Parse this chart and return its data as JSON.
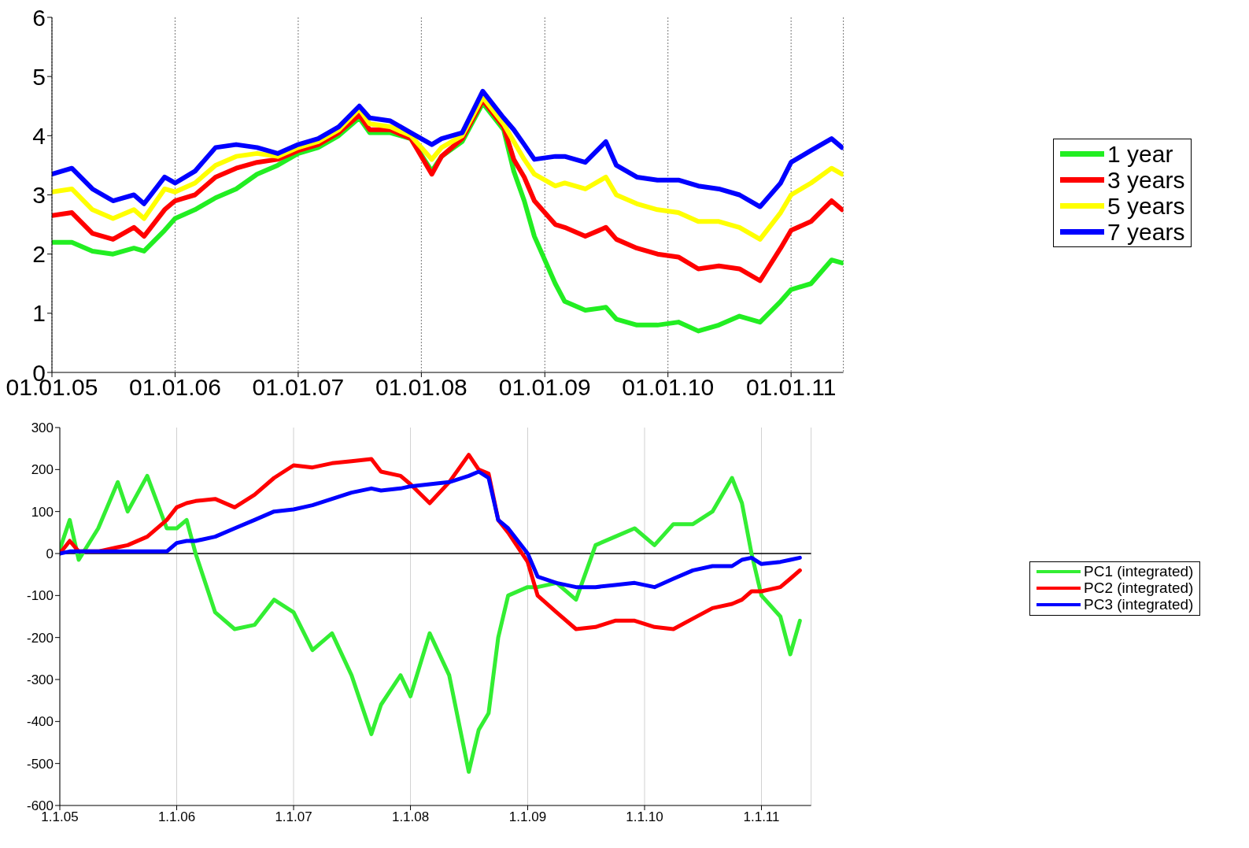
{
  "chart_data": [
    {
      "type": "line",
      "x": [
        "2005-01",
        "2005-03",
        "2005-05",
        "2005-07",
        "2005-09",
        "2005-10",
        "2005-12",
        "2006-01",
        "2006-03",
        "2006-05",
        "2006-07",
        "2006-09",
        "2006-11",
        "2007-01",
        "2007-03",
        "2007-05",
        "2007-07",
        "2007-08",
        "2007-10",
        "2007-12",
        "2008-02",
        "2008-03",
        "2008-05",
        "2008-07",
        "2008-09",
        "2008-10",
        "2008-11",
        "2008-12",
        "2009-02",
        "2009-03",
        "2009-05",
        "2009-07",
        "2009-08",
        "2009-10",
        "2009-12",
        "2010-02",
        "2010-04",
        "2010-06",
        "2010-08",
        "2010-10",
        "2010-12",
        "2011-01",
        "2011-03",
        "2011-05",
        "2011-06"
      ],
      "series": [
        {
          "name": "1 year",
          "color": "#22ee22",
          "values": [
            2.2,
            2.2,
            2.05,
            2.0,
            2.1,
            2.05,
            2.4,
            2.6,
            2.75,
            2.95,
            3.1,
            3.35,
            3.5,
            3.7,
            3.8,
            4.0,
            4.3,
            4.05,
            4.05,
            3.95,
            3.4,
            3.65,
            3.9,
            4.55,
            4.1,
            3.4,
            2.9,
            2.3,
            1.5,
            1.2,
            1.05,
            1.1,
            0.9,
            0.8,
            0.8,
            0.85,
            0.7,
            0.8,
            0.95,
            0.85,
            1.2,
            1.4,
            1.5,
            1.9,
            1.85
          ]
        },
        {
          "name": "3 years",
          "color": "#ff0000",
          "values": [
            2.65,
            2.7,
            2.35,
            2.25,
            2.45,
            2.3,
            2.75,
            2.9,
            3.0,
            3.3,
            3.45,
            3.55,
            3.6,
            3.75,
            3.85,
            4.05,
            4.35,
            4.1,
            4.1,
            3.95,
            3.35,
            3.65,
            3.95,
            4.6,
            4.15,
            3.6,
            3.3,
            2.9,
            2.5,
            2.45,
            2.3,
            2.45,
            2.25,
            2.1,
            2.0,
            1.95,
            1.75,
            1.8,
            1.75,
            1.55,
            2.1,
            2.4,
            2.55,
            2.9,
            2.75
          ]
        },
        {
          "name": "5 years",
          "color": "#ffff00",
          "values": [
            3.05,
            3.1,
            2.75,
            2.6,
            2.75,
            2.6,
            3.1,
            3.05,
            3.2,
            3.5,
            3.65,
            3.7,
            3.65,
            3.8,
            3.9,
            4.1,
            4.45,
            4.2,
            4.15,
            4.0,
            3.6,
            3.8,
            4.0,
            4.65,
            4.2,
            3.9,
            3.6,
            3.35,
            3.15,
            3.2,
            3.1,
            3.3,
            3.0,
            2.85,
            2.75,
            2.7,
            2.55,
            2.55,
            2.45,
            2.25,
            2.7,
            3.0,
            3.2,
            3.45,
            3.35
          ]
        },
        {
          "name": "7 years",
          "color": "#0000ff",
          "values": [
            3.35,
            3.45,
            3.1,
            2.9,
            3.0,
            2.85,
            3.3,
            3.2,
            3.4,
            3.8,
            3.85,
            3.8,
            3.7,
            3.85,
            3.95,
            4.15,
            4.5,
            4.3,
            4.25,
            4.05,
            3.85,
            3.95,
            4.05,
            4.75,
            4.3,
            4.1,
            3.85,
            3.6,
            3.65,
            3.65,
            3.55,
            3.9,
            3.5,
            3.3,
            3.25,
            3.25,
            3.15,
            3.1,
            3.0,
            2.8,
            3.2,
            3.55,
            3.75,
            3.95,
            3.8
          ]
        }
      ],
      "xlim": [
        "2005-01-01",
        "2011-06-05"
      ],
      "xticks": [
        {
          "value": "2005-01-01",
          "label": "01.01.05"
        },
        {
          "value": "2006-01-01",
          "label": "01.01.06"
        },
        {
          "value": "2007-01-01",
          "label": "01.01.07"
        },
        {
          "value": "2008-01-01",
          "label": "01.01.08"
        },
        {
          "value": "2009-01-01",
          "label": "01.01.09"
        },
        {
          "value": "2010-01-01",
          "label": "01.01.10"
        },
        {
          "value": "2011-01-01",
          "label": "01.01.11"
        }
      ],
      "ylim": [
        0,
        6
      ],
      "yticks": [
        0,
        1,
        2,
        3,
        4,
        5,
        6
      ],
      "grid": "x",
      "legend": "right",
      "marker": "none",
      "line_style": "solid"
    },
    {
      "type": "line",
      "x": [
        "2005-01",
        "2005-02",
        "2005-03",
        "2005-05",
        "2005-07",
        "2005-08",
        "2005-10",
        "2005-12",
        "2006-01",
        "2006-02",
        "2006-03",
        "2006-05",
        "2006-07",
        "2006-09",
        "2006-11",
        "2007-01",
        "2007-03",
        "2007-05",
        "2007-07",
        "2007-09",
        "2007-10",
        "2007-12",
        "2008-01",
        "2008-03",
        "2008-05",
        "2008-07",
        "2008-08",
        "2008-09",
        "2008-10",
        "2008-11",
        "2009-01",
        "2009-02",
        "2009-04",
        "2009-06",
        "2009-08",
        "2009-10",
        "2009-12",
        "2010-02",
        "2010-04",
        "2010-06",
        "2010-08",
        "2010-10",
        "2010-11",
        "2010-12",
        "2011-01",
        "2011-03",
        "2011-04",
        "2011-05"
      ],
      "series": [
        {
          "name": "PC1 (integrated)",
          "color": "#33ee33",
          "values": [
            10,
            80,
            -15,
            60,
            170,
            100,
            185,
            60,
            60,
            80,
            0,
            -140,
            -180,
            -170,
            -110,
            -140,
            -230,
            -190,
            -290,
            -430,
            -360,
            -290,
            -340,
            -190,
            -290,
            -520,
            -420,
            -380,
            -200,
            -100,
            -80,
            -80,
            -70,
            -110,
            20,
            40,
            60,
            20,
            70,
            70,
            100,
            180,
            120,
            0,
            -100,
            -150,
            -240,
            -160
          ]
        },
        {
          "name": "PC2 (integrated)",
          "color": "#ff0000",
          "values": [
            0,
            30,
            5,
            5,
            15,
            20,
            40,
            80,
            110,
            120,
            125,
            130,
            110,
            140,
            180,
            210,
            205,
            215,
            220,
            225,
            195,
            185,
            165,
            120,
            170,
            235,
            200,
            190,
            80,
            50,
            -20,
            -100,
            -140,
            -180,
            -175,
            -160,
            -160,
            -175,
            -180,
            -155,
            -130,
            -120,
            -110,
            -90,
            -90,
            -80,
            -60,
            -40
          ]
        },
        {
          "name": "PC3 (integrated)",
          "color": "#0000ff",
          "values": [
            0,
            5,
            5,
            5,
            5,
            5,
            5,
            5,
            25,
            30,
            30,
            40,
            60,
            80,
            100,
            105,
            115,
            130,
            145,
            155,
            150,
            155,
            160,
            165,
            170,
            185,
            195,
            180,
            80,
            60,
            0,
            -55,
            -70,
            -80,
            -80,
            -75,
            -70,
            -80,
            -60,
            -40,
            -30,
            -30,
            -15,
            -10,
            -25,
            -20,
            -15,
            -10
          ]
        }
      ],
      "xlim": [
        "2005-01-01",
        "2011-06-05"
      ],
      "xticks": [
        {
          "value": "2005-01-01",
          "label": "1.1.05"
        },
        {
          "value": "2006-01-01",
          "label": "1.1.06"
        },
        {
          "value": "2007-01-01",
          "label": "1.1.07"
        },
        {
          "value": "2008-01-01",
          "label": "1.1.08"
        },
        {
          "value": "2009-01-01",
          "label": "1.1.09"
        },
        {
          "value": "2010-01-01",
          "label": "1.1.10"
        },
        {
          "value": "2011-01-01",
          "label": "1.1.11"
        }
      ],
      "ylim": [
        -600,
        300
      ],
      "yticks": [
        -600,
        -500,
        -400,
        -300,
        -200,
        -100,
        0,
        100,
        200,
        300
      ],
      "ref_lines": [
        {
          "axis": "y",
          "value": 0,
          "color": "#000000"
        }
      ],
      "grid": "x",
      "legend": "right",
      "marker": "none",
      "line_style": "solid"
    }
  ]
}
